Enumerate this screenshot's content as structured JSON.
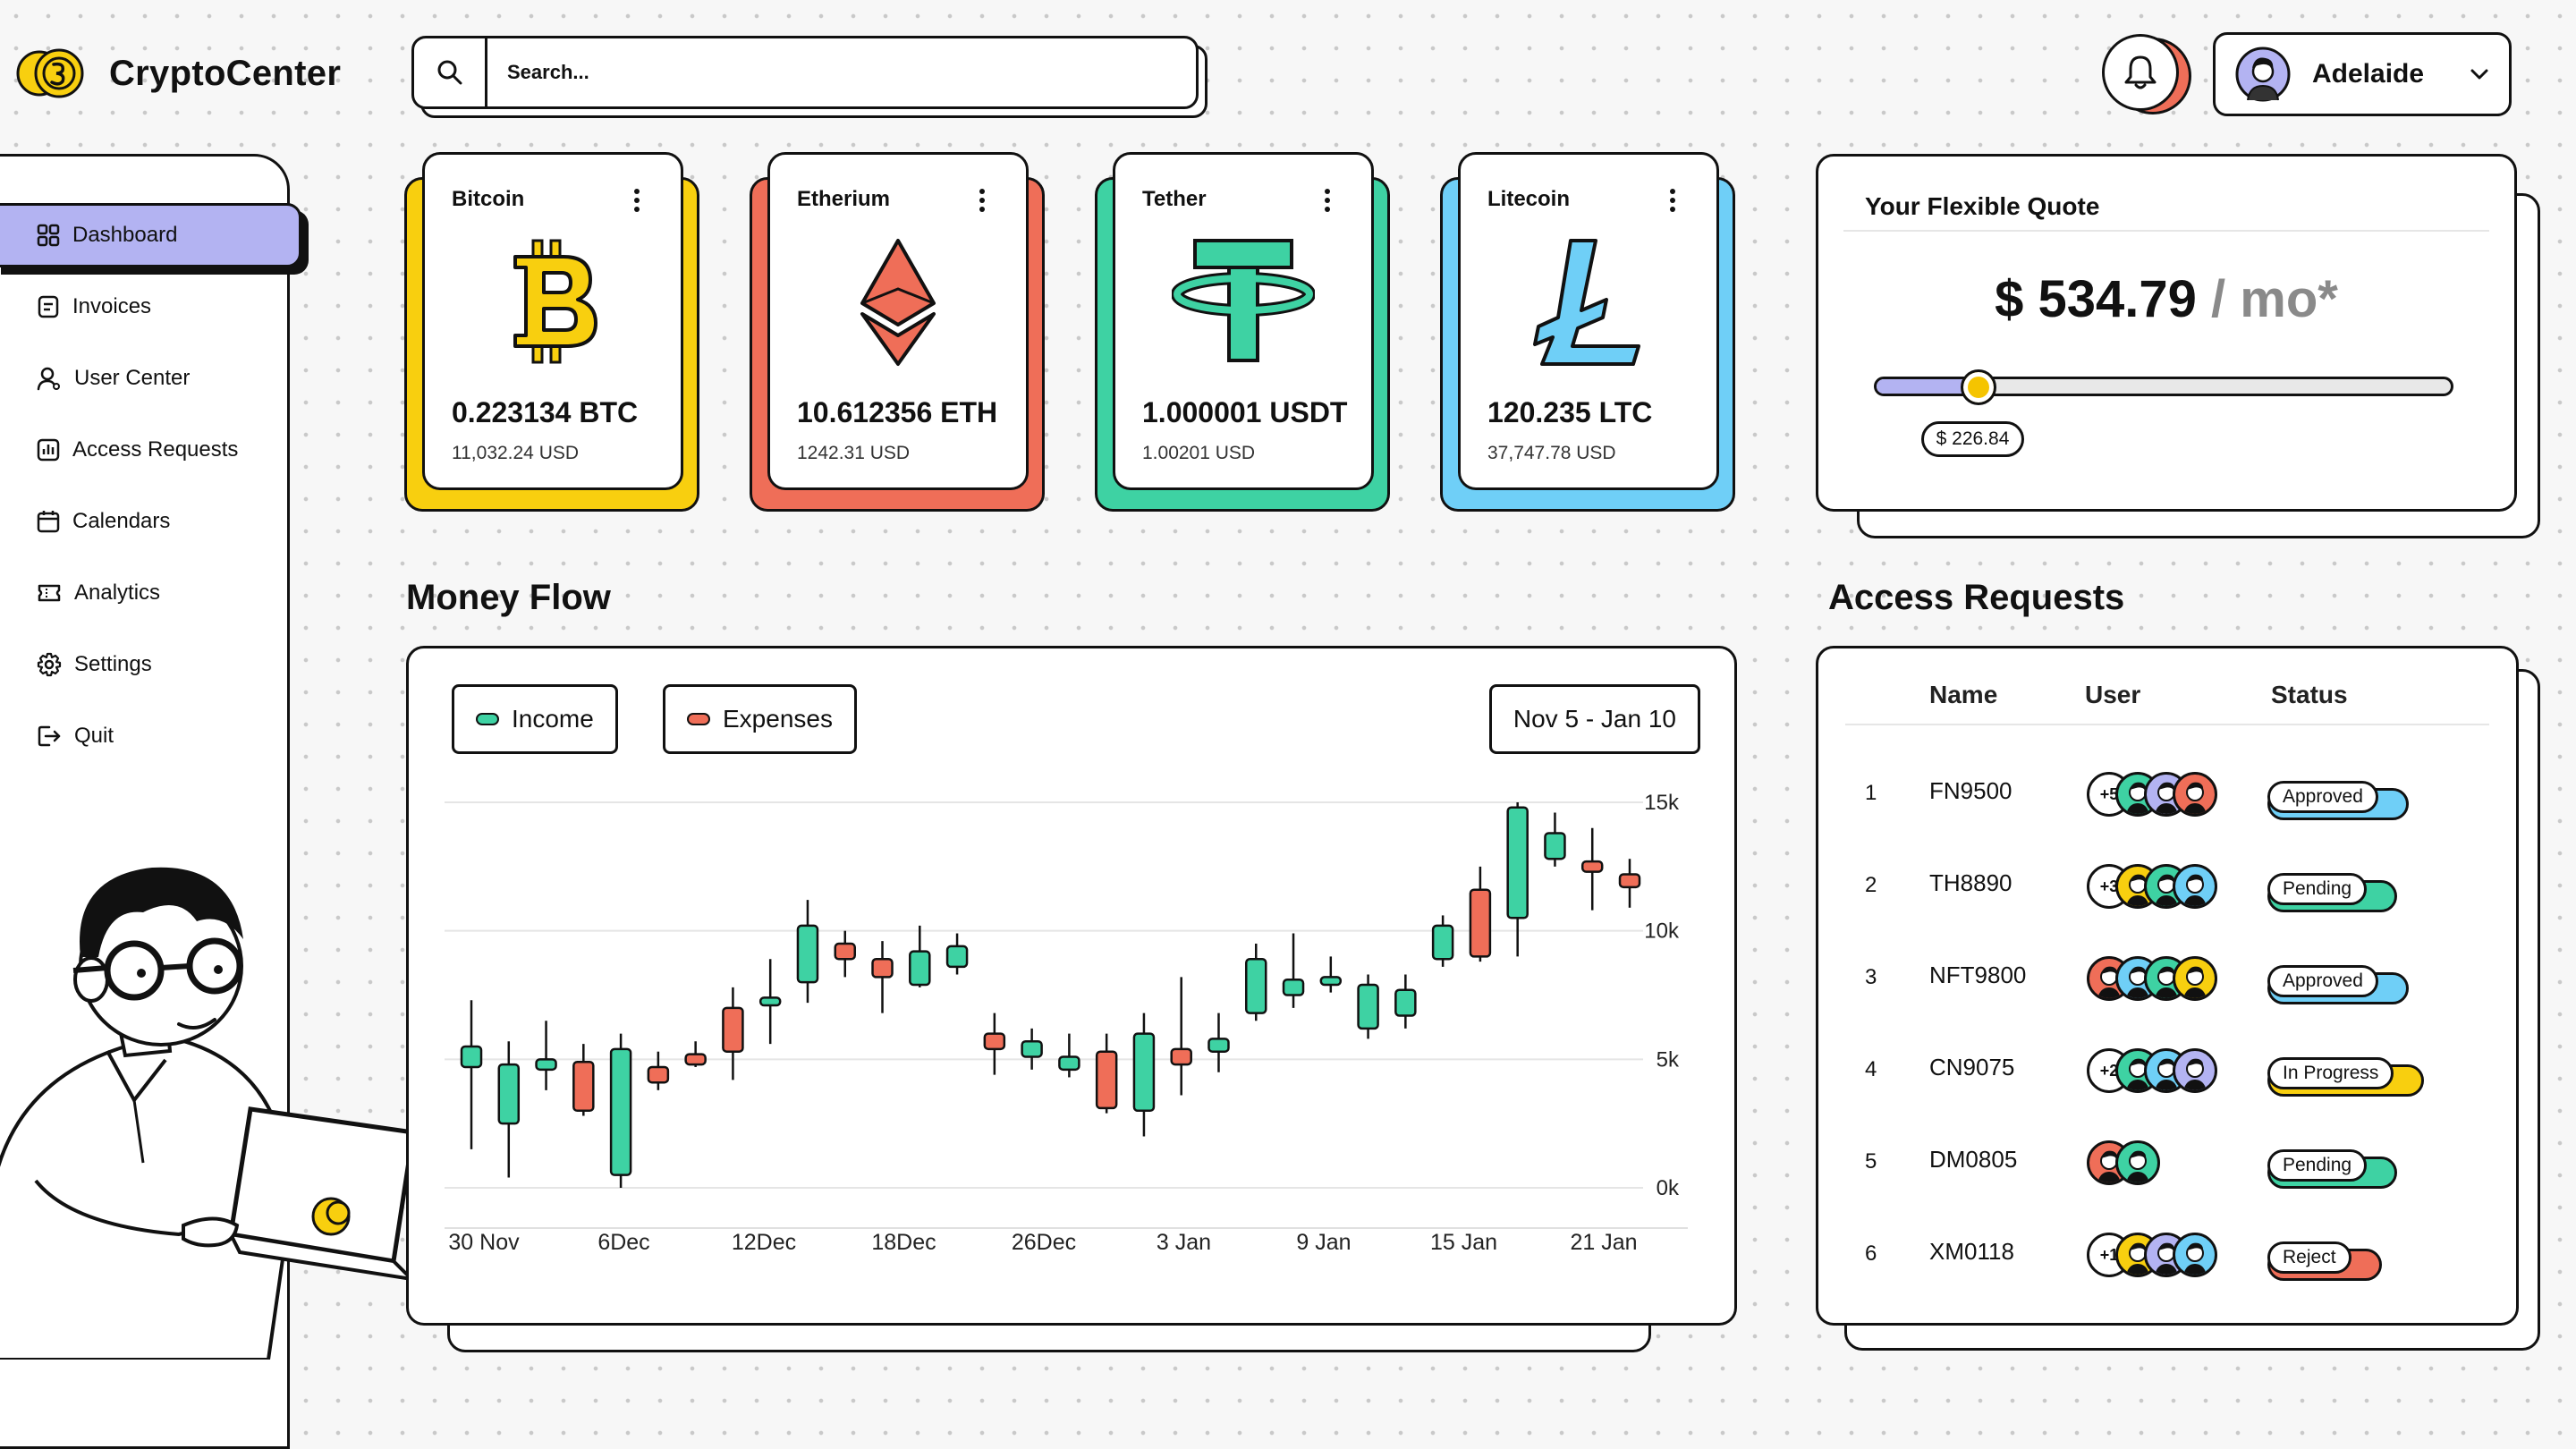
{
  "app": {
    "title": "CryptoCenter"
  },
  "search": {
    "placeholder": "Search..."
  },
  "user": {
    "name": "Adelaide"
  },
  "sidebar": {
    "items": [
      {
        "label": "Dashboard",
        "icon": "dashboard-grid-icon",
        "active": true
      },
      {
        "label": "Invoices",
        "icon": "invoice-icon"
      },
      {
        "label": "User Center",
        "icon": "user-icon"
      },
      {
        "label": "Access Requests",
        "icon": "chart-box-icon"
      },
      {
        "label": "Calendars",
        "icon": "calendar-icon"
      },
      {
        "label": "Analytics",
        "icon": "ticket-icon"
      },
      {
        "label": "Settings",
        "icon": "gear-icon"
      },
      {
        "label": "Quit",
        "icon": "logout-icon"
      }
    ]
  },
  "cryptos": [
    {
      "name": "Bitcoin",
      "amount": "0.223134 BTC",
      "usd": "11,032.24 USD",
      "color": "#f8cf0f",
      "icon": "bitcoin-icon"
    },
    {
      "name": "Etherium",
      "amount": "10.612356 ETH",
      "usd": "1242.31 USD",
      "color": "#ef6e58",
      "icon": "ethereum-icon"
    },
    {
      "name": "Tether",
      "amount": "1.000001 USDT",
      "usd": "1.00201 USD",
      "color": "#3ed2a3",
      "icon": "tether-icon"
    },
    {
      "name": "Litecoin",
      "amount": "120.235 LTC",
      "usd": "37,747.78 USD",
      "color": "#6fcff7",
      "icon": "litecoin-icon"
    }
  ],
  "quote": {
    "title": "Your Flexible Quote",
    "price": "$ 534.79",
    "per": "/ mo*",
    "slider_value": "$ 226.84",
    "slider_fraction": 0.18
  },
  "money_flow": {
    "title": "Money Flow",
    "income_label": "Income",
    "expenses_label": "Expenses",
    "date_range": "Nov 5 - Jan 10"
  },
  "chart_data": {
    "type": "candlestick",
    "y_ticks": [
      "0k",
      "5k",
      "10k",
      "15k"
    ],
    "ylim": [
      0,
      15000
    ],
    "x_labels": [
      "30 Nov",
      "6Dec",
      "12Dec",
      "18Dec",
      "26Dec",
      "3 Jan",
      "9 Jan",
      "15 Jan",
      "21 Jan"
    ],
    "series_colors": {
      "income": "#3ed2a3",
      "expenses": "#ef6e58"
    },
    "candles": [
      {
        "kind": "income",
        "low": 1500,
        "open": 4700,
        "close": 5500,
        "high": 7300
      },
      {
        "kind": "income",
        "low": 400,
        "open": 2500,
        "close": 4800,
        "high": 5700
      },
      {
        "kind": "income",
        "low": 3800,
        "open": 4600,
        "close": 5000,
        "high": 6500
      },
      {
        "kind": "expenses",
        "low": 2800,
        "open": 3000,
        "close": 4900,
        "high": 5600
      },
      {
        "kind": "income",
        "low": 0,
        "open": 500,
        "close": 5400,
        "high": 6000
      },
      {
        "kind": "expenses",
        "low": 3800,
        "open": 4100,
        "close": 4700,
        "high": 5300
      },
      {
        "kind": "expenses",
        "low": 4700,
        "open": 4800,
        "close": 5200,
        "high": 5700
      },
      {
        "kind": "expenses",
        "low": 4200,
        "open": 5300,
        "close": 7000,
        "high": 7800
      },
      {
        "kind": "income",
        "low": 5600,
        "open": 7100,
        "close": 7400,
        "high": 8900
      },
      {
        "kind": "income",
        "low": 7200,
        "open": 8000,
        "close": 10200,
        "high": 11200
      },
      {
        "kind": "expenses",
        "low": 8200,
        "open": 8900,
        "close": 9500,
        "high": 10000
      },
      {
        "kind": "expenses",
        "low": 6800,
        "open": 8200,
        "close": 8900,
        "high": 9600
      },
      {
        "kind": "income",
        "low": 7800,
        "open": 7900,
        "close": 9200,
        "high": 10200
      },
      {
        "kind": "income",
        "low": 8300,
        "open": 8600,
        "close": 9400,
        "high": 9900
      },
      {
        "kind": "expenses",
        "low": 4400,
        "open": 5400,
        "close": 6000,
        "high": 6800
      },
      {
        "kind": "income",
        "low": 4600,
        "open": 5100,
        "close": 5700,
        "high": 6200
      },
      {
        "kind": "income",
        "low": 4300,
        "open": 4600,
        "close": 5100,
        "high": 6000
      },
      {
        "kind": "expenses",
        "low": 2900,
        "open": 3100,
        "close": 5300,
        "high": 6000
      },
      {
        "kind": "income",
        "low": 2000,
        "open": 3000,
        "close": 6000,
        "high": 6800
      },
      {
        "kind": "expenses",
        "low": 3600,
        "open": 4800,
        "close": 5400,
        "high": 8200
      },
      {
        "kind": "income",
        "low": 4500,
        "open": 5300,
        "close": 5800,
        "high": 6800
      },
      {
        "kind": "income",
        "low": 6500,
        "open": 6800,
        "close": 8900,
        "high": 9500
      },
      {
        "kind": "income",
        "low": 7000,
        "open": 7500,
        "close": 8100,
        "high": 9900
      },
      {
        "kind": "income",
        "low": 7600,
        "open": 7900,
        "close": 8200,
        "high": 9000
      },
      {
        "kind": "income",
        "low": 5800,
        "open": 6200,
        "close": 7900,
        "high": 8300
      },
      {
        "kind": "income",
        "low": 6200,
        "open": 6700,
        "close": 7700,
        "high": 8300
      },
      {
        "kind": "income",
        "low": 8600,
        "open": 8900,
        "close": 10200,
        "high": 10600
      },
      {
        "kind": "expenses",
        "low": 8800,
        "open": 9000,
        "close": 11600,
        "high": 12500
      },
      {
        "kind": "income",
        "low": 9000,
        "open": 10500,
        "close": 14800,
        "high": 15000
      },
      {
        "kind": "income",
        "low": 12500,
        "open": 12800,
        "close": 13800,
        "high": 14600
      },
      {
        "kind": "expenses",
        "low": 10800,
        "open": 12300,
        "close": 12700,
        "high": 14000
      },
      {
        "kind": "expenses",
        "low": 10900,
        "open": 11700,
        "close": 12200,
        "high": 12800
      }
    ]
  },
  "access_requests": {
    "title": "Access Requests",
    "headers": {
      "name": "Name",
      "user": "User",
      "status": "Status"
    },
    "rows": [
      {
        "index": "1",
        "name": "FN9500",
        "extra": "+5",
        "avatars": [
          "#3ed2a3",
          "#b3b3f2",
          "#ef6e58"
        ],
        "status": "Approved",
        "status_color": "#6fcff7"
      },
      {
        "index": "2",
        "name": "TH8890",
        "extra": "+3",
        "avatars": [
          "#f8cf0f",
          "#3ed2a3",
          "#6fcff7"
        ],
        "status": "Pending",
        "status_color": "#3ed2a3"
      },
      {
        "index": "3",
        "name": "NFT9800",
        "extra": "",
        "avatars": [
          "#ef6e58",
          "#6fcff7",
          "#3ed2a3",
          "#f8cf0f"
        ],
        "status": "Approved",
        "status_color": "#6fcff7"
      },
      {
        "index": "4",
        "name": "CN9075",
        "extra": "+2",
        "avatars": [
          "#3ed2a3",
          "#6fcff7",
          "#b3b3f2"
        ],
        "status": "In Progress",
        "status_color": "#f8cf0f"
      },
      {
        "index": "5",
        "name": "DM0805",
        "extra": "",
        "avatars": [
          "#ef6e58",
          "#3ed2a3"
        ],
        "status": "Pending",
        "status_color": "#3ed2a3"
      },
      {
        "index": "6",
        "name": "XM0118",
        "extra": "+1",
        "avatars": [
          "#f8cf0f",
          "#b3b3f2",
          "#6fcff7"
        ],
        "status": "Reject",
        "status_color": "#ef6e58"
      }
    ]
  }
}
